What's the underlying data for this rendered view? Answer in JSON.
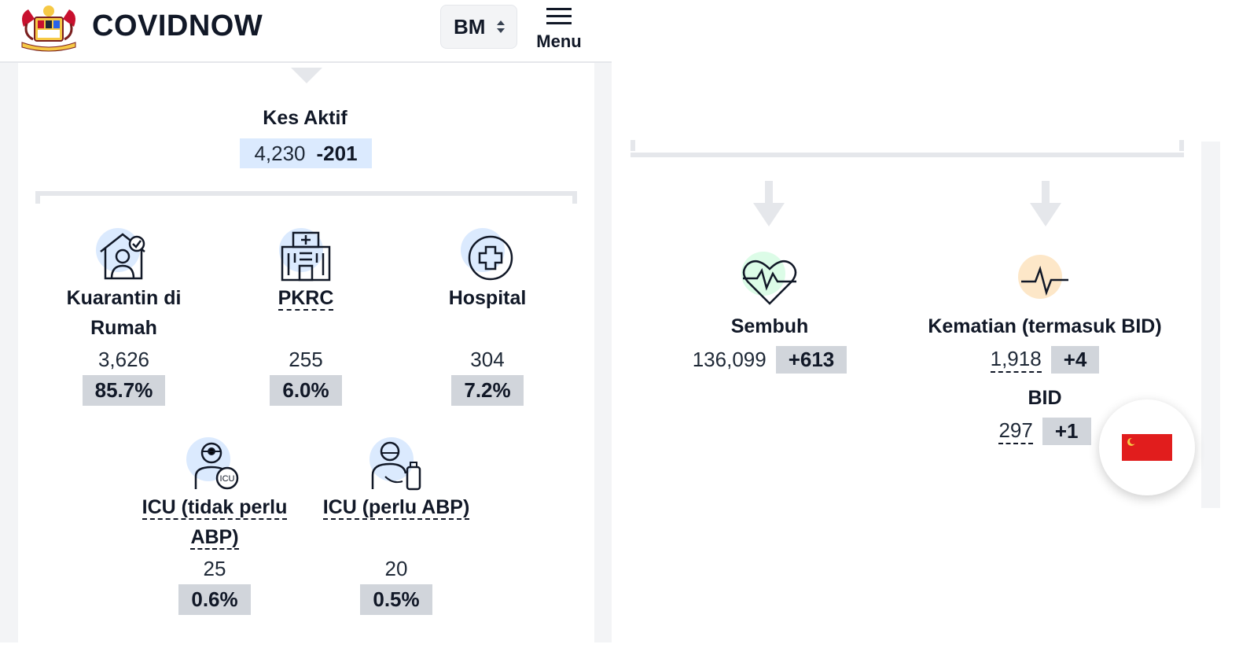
{
  "header": {
    "brand": "COVIDNOW",
    "language": "BM",
    "menu_label": "Menu"
  },
  "active_cases": {
    "title": "Kes Aktif",
    "value": "4,230",
    "delta": "-201"
  },
  "breakdown": [
    {
      "label": "Kuarantin di Rumah",
      "value": "3,626",
      "percent": "85.7%",
      "icon": "home-quarantine-icon"
    },
    {
      "label": "PKRC",
      "value": "255",
      "percent": "6.0%",
      "icon": "pkrc-building-icon"
    },
    {
      "label": "Hospital",
      "value": "304",
      "percent": "7.2%",
      "icon": "hospital-cross-icon"
    },
    {
      "label": "ICU (tidak perlu ABP)",
      "value": "25",
      "percent": "0.6%",
      "icon": "icu-doctor-icon"
    },
    {
      "label": "ICU (perlu ABP)",
      "value": "20",
      "percent": "0.5%",
      "icon": "ventilator-icon"
    }
  ],
  "outcomes": {
    "recovered": {
      "label": "Sembuh",
      "value": "136,099",
      "delta": "+613",
      "icon": "heartbeat-icon"
    },
    "deaths": {
      "label": "Kematian (termasuk BID)",
      "value": "1,918",
      "delta": "+4",
      "icon": "pulse-line-icon"
    },
    "bid": {
      "label": "BID",
      "value": "297",
      "delta": "+1"
    }
  },
  "colors": {
    "active_bg": "#dbeafe",
    "percent_bg": "#d1d5db",
    "icon_blue": "#dbeafe",
    "icon_green": "#dcfce7",
    "icon_peach": "#fde7c8",
    "flag_red": "#e11d1d"
  },
  "flag_button": {
    "icon": "country-flag-icon"
  }
}
